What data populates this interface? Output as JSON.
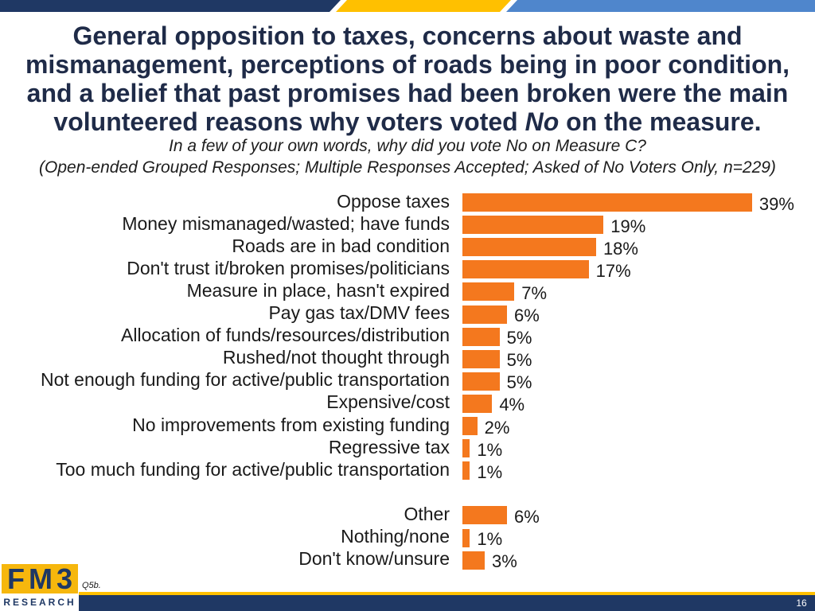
{
  "colors": {
    "title_text": "#1f2b48",
    "accent_navy": "#1f3864",
    "accent_yellow": "#ffc000",
    "accent_blue": "#4f86cc",
    "bar_fill": "#f4781e",
    "logo_gold": "#f6b70d"
  },
  "chart_data": {
    "type": "bar",
    "orientation": "horizontal",
    "grid": false,
    "legend": "none",
    "title": {
      "before": "General opposition to taxes, concerns about waste and mismanagement, perceptions of roads being in poor condition, and a belief that past promises had been broken were the main volunteered reasons why voters voted ",
      "emphasis": "No",
      "after": " on the measure."
    },
    "question": "In a few of your own words, why did you vote No on Measure C?",
    "note": "(Open-ended Grouped Responses; Multiple Responses Accepted; Asked of No Voters Only, n=229)",
    "categories": [
      "Oppose taxes",
      "Money mismanaged/wasted; have funds",
      "Roads are in bad condition",
      "Don't trust it/broken promises/politicians",
      "Measure in place, hasn't expired",
      "Pay gas tax/DMV fees",
      "Allocation of funds/resources/distribution",
      "Rushed/not thought through",
      "Not enough funding for active/public transportation",
      "Expensive/cost",
      "No improvements from existing funding",
      "Regressive tax",
      "Too much funding for active/public transportation",
      "Other",
      "Nothing/none",
      "Don't know/unsure"
    ],
    "values": [
      39,
      19,
      18,
      17,
      7,
      6,
      5,
      5,
      5,
      4,
      2,
      1,
      1,
      6,
      1,
      3
    ],
    "value_labels": [
      "39%",
      "19%",
      "18%",
      "17%",
      "7%",
      "6%",
      "5%",
      "5%",
      "5%",
      "4%",
      "2%",
      "1%",
      "1%",
      "6%",
      "1%",
      "3%"
    ]
  },
  "footer": {
    "question_id": "Q5b.",
    "page_number": "16",
    "logo": {
      "wordmark": "FM3",
      "tagline": "RESEARCH"
    }
  }
}
